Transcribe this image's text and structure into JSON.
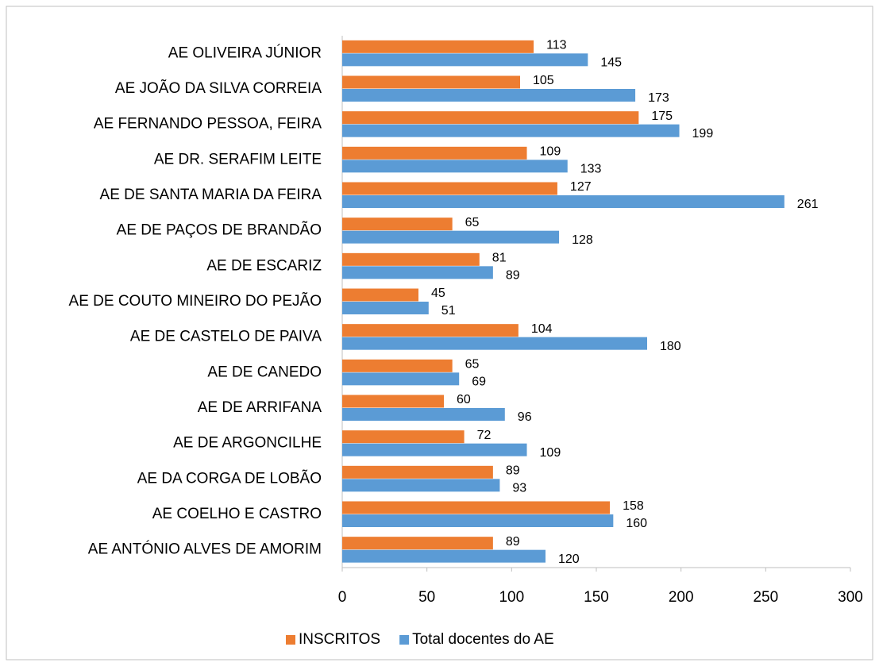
{
  "chart_data": {
    "type": "bar",
    "orientation": "horizontal",
    "categories": [
      "AE OLIVEIRA JÚNIOR",
      "AE JOÃO DA SILVA CORREIA",
      "AE FERNANDO PESSOA, FEIRA",
      "AE DR. SERAFIM LEITE",
      "AE DE SANTA MARIA DA FEIRA",
      "AE DE PAÇOS DE BRANDÃO",
      "AE DE ESCARIZ",
      "AE DE COUTO MINEIRO DO PEJÃO",
      "AE DE CASTELO DE PAIVA",
      "AE DE CANEDO",
      "AE DE ARRIFANA",
      "AE DE ARGONCILHE",
      "AE DA CORGA DE LOBÃO",
      "AE COELHO E CASTRO",
      "AE ANTÓNIO ALVES DE AMORIM"
    ],
    "series": [
      {
        "name": "INSCRITOS",
        "color": "#ed7d31",
        "values": [
          113,
          105,
          175,
          109,
          127,
          65,
          81,
          45,
          104,
          65,
          60,
          72,
          89,
          158,
          89
        ]
      },
      {
        "name": "Total docentes do AE",
        "color": "#5b9bd5",
        "values": [
          145,
          173,
          199,
          133,
          261,
          128,
          89,
          51,
          180,
          69,
          96,
          109,
          93,
          160,
          120
        ]
      }
    ],
    "xlim": [
      0,
      300
    ],
    "xticks": [
      0,
      50,
      100,
      150,
      200,
      250,
      300
    ],
    "legend": "bottom"
  }
}
